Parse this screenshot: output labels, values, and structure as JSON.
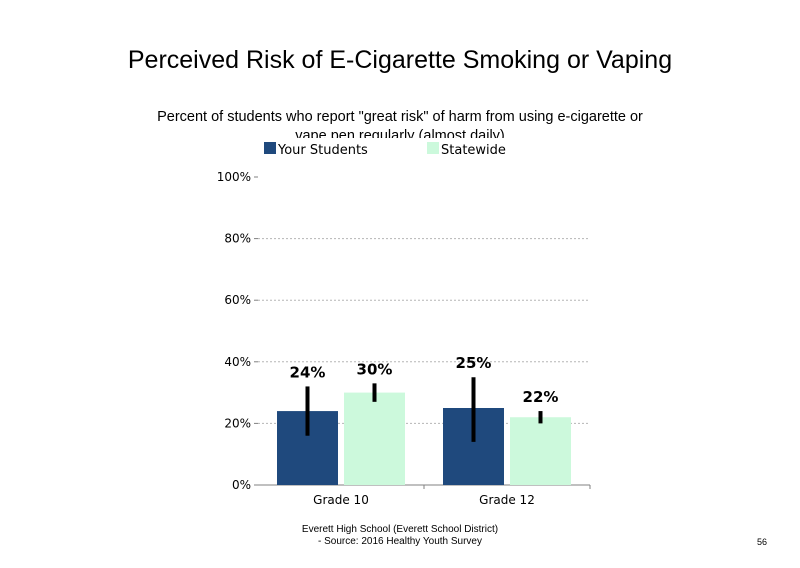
{
  "slide": {
    "title": "Perceived Risk of E-Cigarette Smoking or Vaping",
    "subtitle": "Percent of students who report \"great risk\" of harm from using e-cigarette or vape pen regularly (almost daily)",
    "footer_line1": "Everett High School (Everett School District)",
    "footer_line2": "- Source: 2016 Healthy Youth Survey",
    "page_number": "56"
  },
  "chart_data": {
    "type": "bar",
    "categories": [
      "Grade 10",
      "Grade 12"
    ],
    "series": [
      {
        "name": "Your Students",
        "color": "#1f497d",
        "values": [
          24,
          25
        ],
        "labels": [
          "24%",
          "25%"
        ],
        "error_low": [
          16,
          14
        ],
        "error_high": [
          32,
          35
        ]
      },
      {
        "name": "Statewide",
        "color": "#ccf9dc",
        "values": [
          30,
          22
        ],
        "labels": [
          "30%",
          "22%"
        ],
        "error_low": [
          27,
          20
        ],
        "error_high": [
          33,
          24
        ]
      }
    ],
    "ylim": [
      0,
      100
    ],
    "y_ticks": [
      0,
      20,
      40,
      60,
      80,
      100
    ],
    "y_tick_labels": [
      "0%",
      "20%",
      "40%",
      "60%",
      "80%",
      "100%"
    ],
    "xlabel": "",
    "ylabel": "",
    "grid": true,
    "legend_position": "top"
  }
}
